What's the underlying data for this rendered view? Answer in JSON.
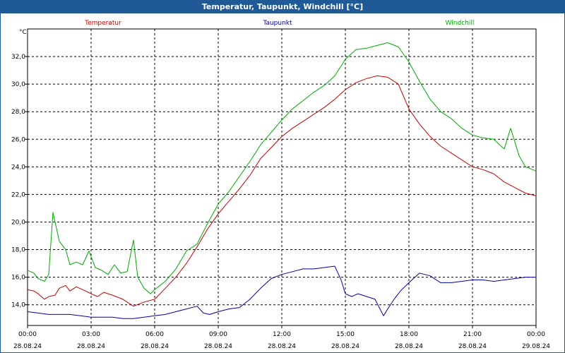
{
  "chart_data": {
    "type": "line",
    "title": "Temperatur, Taupunkt, Windchill [°C]",
    "ylabel": "°C",
    "ylim": [
      12.5,
      34.0
    ],
    "xlim": [
      0,
      24
    ],
    "grid": true,
    "y_ticks": [
      "14,0",
      "16,0",
      "18,0",
      "20,0",
      "22,0",
      "24,0",
      "26,0",
      "28,0",
      "30,0",
      "32,0"
    ],
    "y_tick_values": [
      14,
      16,
      18,
      20,
      22,
      24,
      26,
      28,
      30,
      32
    ],
    "x_ticks": [
      {
        "hours": 0,
        "time": "00:00",
        "date": "28.08.24"
      },
      {
        "hours": 3,
        "time": "03:00",
        "date": "28.08.24"
      },
      {
        "hours": 6,
        "time": "06:00",
        "date": "28.08.24"
      },
      {
        "hours": 9,
        "time": "09:00",
        "date": "28.08.24"
      },
      {
        "hours": 12,
        "time": "12:00",
        "date": "28.08.24"
      },
      {
        "hours": 15,
        "time": "15:00",
        "date": "28.08.24"
      },
      {
        "hours": 18,
        "time": "18:00",
        "date": "28.08.24"
      },
      {
        "hours": 21,
        "time": "21:00",
        "date": "28.08.24"
      },
      {
        "hours": 24,
        "time": "00:00",
        "date": "29.08.24"
      }
    ],
    "series": [
      {
        "name": "Temperatur",
        "color": "#cc0000",
        "x": [
          0,
          0.3,
          0.5,
          0.8,
          1.0,
          1.3,
          1.5,
          1.8,
          2.0,
          2.3,
          2.6,
          3.0,
          3.3,
          3.6,
          4.0,
          4.5,
          5.0,
          5.5,
          6.0,
          6.5,
          7.0,
          7.5,
          8.0,
          8.5,
          9.0,
          9.5,
          10.0,
          10.5,
          11.0,
          11.5,
          12.0,
          12.5,
          13.0,
          13.5,
          14.0,
          14.5,
          15.0,
          15.5,
          16.0,
          16.5,
          17.0,
          17.5,
          18.0,
          18.5,
          19.0,
          19.5,
          20.0,
          20.5,
          21.0,
          21.5,
          22.0,
          22.5,
          23.0,
          23.5,
          24.0
        ],
        "values": [
          15.1,
          15.0,
          14.8,
          14.4,
          14.6,
          14.7,
          15.2,
          15.4,
          15.0,
          15.3,
          15.1,
          14.8,
          14.6,
          14.9,
          14.7,
          14.4,
          13.9,
          14.2,
          14.4,
          15.2,
          16.0,
          17.0,
          18.2,
          19.5,
          20.6,
          21.5,
          22.4,
          23.4,
          24.6,
          25.4,
          26.2,
          26.8,
          27.3,
          27.8,
          28.3,
          28.9,
          29.6,
          30.1,
          30.4,
          30.6,
          30.5,
          30.0,
          28.2,
          27.1,
          26.2,
          25.5,
          25.0,
          24.5,
          24.0,
          23.8,
          23.5,
          22.9,
          22.5,
          22.1,
          21.9
        ]
      },
      {
        "name": "Taupunkt",
        "color": "#0000aa",
        "x": [
          0,
          0.5,
          1.0,
          1.5,
          2.0,
          2.5,
          3.0,
          3.5,
          4.0,
          4.5,
          5.0,
          5.5,
          6.0,
          6.5,
          7.0,
          7.5,
          8.0,
          8.3,
          8.6,
          9.0,
          9.5,
          10.0,
          10.5,
          11.0,
          11.5,
          12.0,
          12.5,
          13.0,
          13.5,
          14.0,
          14.5,
          14.8,
          15.0,
          15.3,
          15.6,
          16.0,
          16.4,
          16.8,
          17.0,
          17.3,
          17.6,
          18.0,
          18.5,
          19.0,
          19.5,
          20.0,
          20.5,
          21.0,
          21.5,
          22.0,
          22.5,
          23.0,
          23.5,
          24.0
        ],
        "values": [
          13.5,
          13.4,
          13.3,
          13.3,
          13.3,
          13.2,
          13.1,
          13.1,
          13.1,
          13.0,
          13.0,
          13.1,
          13.2,
          13.3,
          13.5,
          13.7,
          13.9,
          13.4,
          13.3,
          13.5,
          13.7,
          13.8,
          14.4,
          15.2,
          15.9,
          16.2,
          16.4,
          16.6,
          16.6,
          16.7,
          16.8,
          15.8,
          14.8,
          14.6,
          14.8,
          14.6,
          14.4,
          13.2,
          13.7,
          14.4,
          15.0,
          15.6,
          16.3,
          16.1,
          15.6,
          15.6,
          15.7,
          15.8,
          15.8,
          15.7,
          15.8,
          15.9,
          16.0,
          16.0
        ]
      },
      {
        "name": "Windchill",
        "color": "#00aa00",
        "x": [
          0,
          0.3,
          0.5,
          0.8,
          1.0,
          1.2,
          1.5,
          1.8,
          2.0,
          2.3,
          2.6,
          2.9,
          3.2,
          3.5,
          3.8,
          4.1,
          4.4,
          4.7,
          5.0,
          5.2,
          5.5,
          5.8,
          6.0,
          6.5,
          7.0,
          7.5,
          8.0,
          8.5,
          9.0,
          9.5,
          10.0,
          10.5,
          11.0,
          11.5,
          12.0,
          12.5,
          13.0,
          13.5,
          14.0,
          14.5,
          15.0,
          15.5,
          16.0,
          16.5,
          17.0,
          17.5,
          18.0,
          18.5,
          19.0,
          19.5,
          20.0,
          20.5,
          21.0,
          21.5,
          22.0,
          22.5,
          22.8,
          23.2,
          23.5,
          24.0
        ],
        "values": [
          16.5,
          16.3,
          15.9,
          15.7,
          16.2,
          20.7,
          18.6,
          18.0,
          16.9,
          17.1,
          16.9,
          17.9,
          16.7,
          16.5,
          16.2,
          16.9,
          16.3,
          16.4,
          18.7,
          16.0,
          15.2,
          14.8,
          15.1,
          15.7,
          16.6,
          17.9,
          18.4,
          19.9,
          21.3,
          22.2,
          23.3,
          24.4,
          25.6,
          26.5,
          27.4,
          28.2,
          28.8,
          29.4,
          29.9,
          30.6,
          31.8,
          32.5,
          32.6,
          32.8,
          33.0,
          32.7,
          31.6,
          30.2,
          28.9,
          28.0,
          27.5,
          26.8,
          26.3,
          26.1,
          26.0,
          25.3,
          26.8,
          24.8,
          24.0,
          23.7
        ]
      }
    ]
  }
}
